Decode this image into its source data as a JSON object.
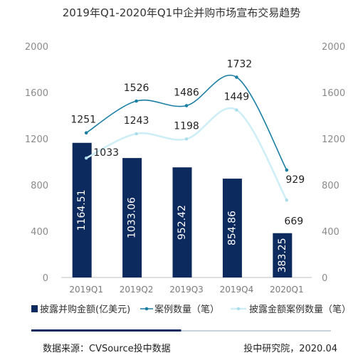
{
  "chart_data": {
    "type": "bar",
    "title": "2019年Q1-2020年Q1中企并购市场宣布交易趋势",
    "categories": [
      "2019Q1",
      "2019Q2",
      "2019Q3",
      "2019Q4",
      "2020Q1"
    ],
    "series": [
      {
        "name": "披露并购金额(亿美元)",
        "type": "bar",
        "axis": "left",
        "values": [
          1164.51,
          1033.06,
          952.42,
          854.86,
          383.25
        ],
        "color": "#0d2a5e"
      },
      {
        "name": "案例数量（笔）",
        "type": "line",
        "axis": "right",
        "values": [
          1251,
          1526,
          1486,
          1732,
          929
        ],
        "color": "#1a7fa3"
      },
      {
        "name": "披露金额案例数量（笔）",
        "type": "line",
        "axis": "right",
        "values": [
          1033,
          1243,
          1198,
          1449,
          669
        ],
        "color": "#cdeef6"
      }
    ],
    "yticks": [
      "0",
      "400",
      "800",
      "1200",
      "1600",
      "2000"
    ],
    "ylim": [
      0,
      2000
    ],
    "y2lim": [
      0,
      2000
    ],
    "xlabel": "",
    "ylabel": "",
    "grid": false,
    "legend_position": "bottom",
    "progress_fraction": 0.5
  },
  "footer": {
    "source": "数据来源：CVSource投中数据",
    "credit": "投中研究院，2020.04"
  },
  "colors": {
    "bar": "#0d2a5e",
    "line_cases": "#1a7fa3",
    "line_disclosed": "#cdeef6",
    "progress": "#0d2a5e",
    "progress_track": "#c8d3e0"
  }
}
